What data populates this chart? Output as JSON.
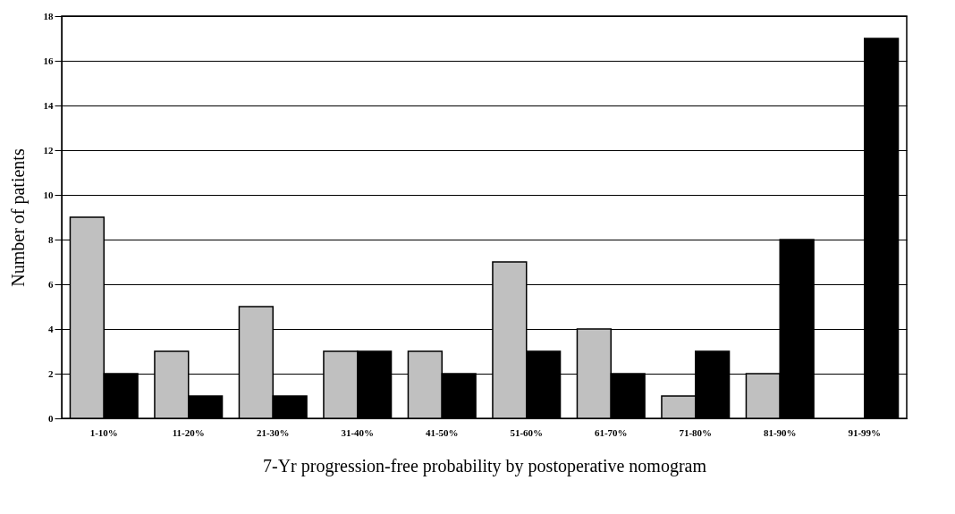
{
  "chart_data": {
    "type": "bar",
    "xlabel": "7-Yr progression-free probability by postoperative nomogram",
    "ylabel": "Number of patients",
    "categories": [
      "1-10%",
      "11-20%",
      "21-30%",
      "31-40%",
      "41-50%",
      "51-60%",
      "61-70%",
      "71-80%",
      "81-90%",
      "91-99%"
    ],
    "series": [
      {
        "color": "#c0c0c0",
        "values": [
          9,
          3,
          5,
          3,
          3,
          7,
          4,
          1,
          2,
          0
        ]
      },
      {
        "color": "#000000",
        "values": [
          2,
          1,
          1,
          3,
          2,
          3,
          2,
          3,
          8,
          17
        ]
      }
    ],
    "ylim": [
      0,
      18
    ],
    "yticks": [
      0,
      2,
      4,
      6,
      8,
      10,
      12,
      14,
      16,
      18
    ],
    "grid": "y",
    "legend": false
  }
}
